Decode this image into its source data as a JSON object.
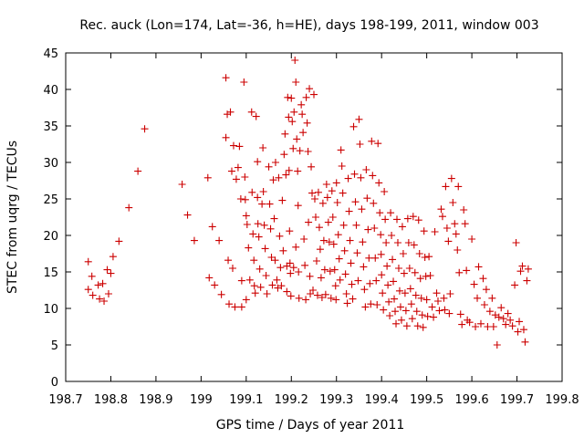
{
  "chart_data": {
    "type": "scatter",
    "title": "Rec. auck (Lon=174, Lat=-36, h=HE), days 198-199, 2011, window 003",
    "xlabel": "GPS time / Days of year 2011",
    "ylabel": "STEC from uqrg / TECUs",
    "xlim": [
      198.7,
      199.8
    ],
    "ylim": [
      0,
      45
    ],
    "xticks": [
      "198.7",
      "198.8",
      "198.9",
      "199",
      "199.1",
      "199.2",
      "199.3",
      "199.4",
      "199.5",
      "199.6",
      "199.7",
      "199.8"
    ],
    "yticks": [
      "0",
      "5",
      "10",
      "15",
      "20",
      "25",
      "30",
      "35",
      "40",
      "45"
    ],
    "grid": false,
    "marker": "+",
    "color": "#cc0000",
    "points": [
      [
        198.75,
        16.4
      ],
      [
        198.75,
        12.6
      ],
      [
        198.758,
        14.4
      ],
      [
        198.76,
        11.8
      ],
      [
        198.772,
        13.2
      ],
      [
        198.775,
        11.3
      ],
      [
        198.782,
        13.4
      ],
      [
        198.785,
        11.0
      ],
      [
        198.792,
        15.3
      ],
      [
        198.795,
        12.0
      ],
      [
        198.8,
        14.8
      ],
      [
        198.805,
        17.1
      ],
      [
        198.818,
        19.2
      ],
      [
        198.84,
        23.8
      ],
      [
        198.86,
        28.8
      ],
      [
        198.875,
        34.6
      ],
      [
        198.958,
        27.0
      ],
      [
        198.97,
        22.8
      ],
      [
        198.985,
        19.3
      ],
      [
        199.015,
        27.9
      ],
      [
        199.018,
        14.2
      ],
      [
        199.025,
        21.2
      ],
      [
        199.03,
        13.2
      ],
      [
        199.04,
        19.3
      ],
      [
        199.045,
        11.9
      ],
      [
        199.055,
        41.6
      ],
      [
        199.055,
        33.4
      ],
      [
        199.058,
        36.6
      ],
      [
        199.06,
        16.6
      ],
      [
        199.062,
        10.6
      ],
      [
        199.065,
        36.9
      ],
      [
        199.068,
        28.8
      ],
      [
        199.07,
        15.5
      ],
      [
        199.072,
        32.3
      ],
      [
        199.075,
        10.2
      ],
      [
        199.078,
        27.7
      ],
      [
        199.082,
        29.3
      ],
      [
        199.085,
        32.2
      ],
      [
        199.088,
        25.0
      ],
      [
        199.09,
        13.8
      ],
      [
        199.09,
        10.2
      ],
      [
        199.095,
        41.0
      ],
      [
        199.097,
        28.0
      ],
      [
        199.098,
        24.9
      ],
      [
        199.1,
        22.7
      ],
      [
        199.1,
        11.2
      ],
      [
        199.102,
        21.5
      ],
      [
        199.105,
        18.3
      ],
      [
        199.108,
        13.9
      ],
      [
        199.112,
        36.9
      ],
      [
        199.113,
        25.9
      ],
      [
        199.115,
        20.2
      ],
      [
        199.117,
        16.6
      ],
      [
        199.118,
        13.1
      ],
      [
        199.12,
        12.1
      ],
      [
        199.122,
        36.3
      ],
      [
        199.125,
        30.1
      ],
      [
        199.125,
        25.2
      ],
      [
        199.126,
        21.6
      ],
      [
        199.128,
        19.8
      ],
      [
        199.13,
        15.4
      ],
      [
        199.132,
        12.9
      ],
      [
        199.135,
        24.3
      ],
      [
        199.137,
        32.0
      ],
      [
        199.138,
        26.0
      ],
      [
        199.14,
        21.4
      ],
      [
        199.142,
        18.2
      ],
      [
        199.144,
        14.5
      ],
      [
        199.146,
        12.0
      ],
      [
        199.15,
        29.4
      ],
      [
        199.152,
        24.3
      ],
      [
        199.154,
        20.9
      ],
      [
        199.156,
        17.0
      ],
      [
        199.158,
        13.2
      ],
      [
        199.16,
        27.6
      ],
      [
        199.162,
        22.3
      ],
      [
        199.164,
        16.6
      ],
      [
        199.165,
        30.0
      ],
      [
        199.168,
        13.9
      ],
      [
        199.17,
        12.8
      ],
      [
        199.172,
        27.9
      ],
      [
        199.174,
        19.9
      ],
      [
        199.176,
        15.6
      ],
      [
        199.178,
        13.1
      ],
      [
        199.18,
        24.8
      ],
      [
        199.182,
        17.9
      ],
      [
        199.184,
        31.1
      ],
      [
        199.186,
        33.9
      ],
      [
        199.188,
        28.3
      ],
      [
        199.19,
        15.8
      ],
      [
        199.19,
        12.3
      ],
      [
        199.192,
        38.9
      ],
      [
        199.194,
        36.2
      ],
      [
        199.195,
        28.9
      ],
      [
        199.196,
        20.6
      ],
      [
        199.197,
        16.2
      ],
      [
        199.198,
        14.8
      ],
      [
        199.199,
        11.7
      ],
      [
        199.2,
        38.8
      ],
      [
        199.202,
        35.6
      ],
      [
        199.204,
        31.9
      ],
      [
        199.205,
        15.6
      ],
      [
        199.206,
        36.9
      ],
      [
        199.208,
        44.0
      ],
      [
        199.21,
        41.0
      ],
      [
        199.21,
        18.4
      ],
      [
        199.212,
        33.2
      ],
      [
        199.214,
        28.8
      ],
      [
        199.215,
        24.1
      ],
      [
        199.216,
        15.0
      ],
      [
        199.217,
        11.4
      ],
      [
        199.219,
        31.6
      ],
      [
        199.222,
        37.9
      ],
      [
        199.224,
        36.6
      ],
      [
        199.226,
        34.1
      ],
      [
        199.228,
        19.5
      ],
      [
        199.23,
        15.9
      ],
      [
        199.232,
        11.2
      ],
      [
        199.233,
        38.9
      ],
      [
        199.235,
        35.4
      ],
      [
        199.237,
        31.5
      ],
      [
        199.238,
        21.8
      ],
      [
        199.24,
        40.1
      ],
      [
        199.241,
        14.4
      ],
      [
        199.242,
        12.0
      ],
      [
        199.244,
        29.4
      ],
      [
        199.246,
        25.8
      ],
      [
        199.248,
        12.5
      ],
      [
        199.25,
        39.3
      ],
      [
        199.252,
        25.0
      ],
      [
        199.254,
        22.5
      ],
      [
        199.256,
        16.5
      ],
      [
        199.258,
        11.8
      ],
      [
        199.26,
        25.9
      ],
      [
        199.262,
        21.1
      ],
      [
        199.264,
        18.1
      ],
      [
        199.266,
        14.2
      ],
      [
        199.268,
        11.5
      ],
      [
        199.27,
        24.4
      ],
      [
        199.272,
        19.3
      ],
      [
        199.274,
        15.3
      ],
      [
        199.276,
        11.9
      ],
      [
        199.278,
        27.0
      ],
      [
        199.28,
        25.2
      ],
      [
        199.282,
        21.8
      ],
      [
        199.284,
        19.1
      ],
      [
        199.286,
        15.1
      ],
      [
        199.288,
        11.4
      ],
      [
        199.29,
        26.1
      ],
      [
        199.292,
        22.5
      ],
      [
        199.294,
        18.8
      ],
      [
        199.296,
        15.3
      ],
      [
        199.298,
        13.1
      ],
      [
        199.299,
        11.2
      ],
      [
        199.3,
        27.2
      ],
      [
        199.302,
        24.5
      ],
      [
        199.304,
        20.1
      ],
      [
        199.306,
        16.8
      ],
      [
        199.308,
        13.9
      ],
      [
        199.31,
        31.7
      ],
      [
        199.312,
        29.5
      ],
      [
        199.314,
        25.8
      ],
      [
        199.316,
        21.4
      ],
      [
        199.318,
        17.9
      ],
      [
        199.32,
        14.7
      ],
      [
        199.322,
        12.0
      ],
      [
        199.324,
        10.7
      ],
      [
        199.326,
        27.8
      ],
      [
        199.328,
        23.3
      ],
      [
        199.33,
        19.3
      ],
      [
        199.332,
        16.2
      ],
      [
        199.334,
        13.3
      ],
      [
        199.336,
        11.3
      ],
      [
        199.338,
        34.9
      ],
      [
        199.34,
        28.4
      ],
      [
        199.342,
        24.6
      ],
      [
        199.344,
        21.4
      ],
      [
        199.346,
        17.6
      ],
      [
        199.348,
        13.8
      ],
      [
        199.35,
        35.9
      ],
      [
        199.352,
        32.5
      ],
      [
        199.354,
        27.9
      ],
      [
        199.356,
        23.6
      ],
      [
        199.358,
        19.1
      ],
      [
        199.36,
        15.7
      ],
      [
        199.362,
        12.6
      ],
      [
        199.364,
        10.2
      ],
      [
        199.366,
        29.0
      ],
      [
        199.368,
        25.1
      ],
      [
        199.37,
        20.8
      ],
      [
        199.372,
        16.9
      ],
      [
        199.374,
        13.4
      ],
      [
        199.376,
        10.6
      ],
      [
        199.378,
        32.9
      ],
      [
        199.38,
        28.2
      ],
      [
        199.382,
        24.4
      ],
      [
        199.384,
        21.0
      ],
      [
        199.386,
        16.9
      ],
      [
        199.388,
        13.8
      ],
      [
        199.39,
        10.5
      ],
      [
        199.392,
        32.6
      ],
      [
        199.394,
        27.2
      ],
      [
        199.396,
        23.1
      ],
      [
        199.398,
        20.1
      ],
      [
        199.399,
        17.4
      ],
      [
        199.4,
        14.6
      ],
      [
        199.402,
        12.1
      ],
      [
        199.404,
        9.8
      ],
      [
        199.406,
        26.0
      ],
      [
        199.408,
        22.2
      ],
      [
        199.41,
        19.0
      ],
      [
        199.412,
        15.8
      ],
      [
        199.414,
        13.2
      ],
      [
        199.416,
        10.9
      ],
      [
        199.418,
        9.0
      ],
      [
        199.42,
        23.1
      ],
      [
        199.422,
        20.0
      ],
      [
        199.424,
        16.7
      ],
      [
        199.426,
        13.7
      ],
      [
        199.428,
        11.3
      ],
      [
        199.43,
        9.6
      ],
      [
        199.432,
        7.9
      ],
      [
        199.434,
        22.2
      ],
      [
        199.436,
        19.0
      ],
      [
        199.438,
        15.5
      ],
      [
        199.44,
        12.4
      ],
      [
        199.442,
        10.2
      ],
      [
        199.444,
        8.4
      ],
      [
        199.446,
        21.2
      ],
      [
        199.448,
        17.5
      ],
      [
        199.45,
        14.8
      ],
      [
        199.452,
        12.1
      ],
      [
        199.454,
        9.7
      ],
      [
        199.456,
        7.6
      ],
      [
        199.458,
        22.3
      ],
      [
        199.46,
        19.0
      ],
      [
        199.462,
        15.5
      ],
      [
        199.464,
        12.7
      ],
      [
        199.466,
        10.6
      ],
      [
        199.468,
        8.6
      ],
      [
        199.47,
        22.6
      ],
      [
        199.472,
        18.7
      ],
      [
        199.474,
        14.9
      ],
      [
        199.476,
        11.8
      ],
      [
        199.478,
        9.6
      ],
      [
        199.48,
        7.6
      ],
      [
        199.482,
        22.1
      ],
      [
        199.484,
        17.5
      ],
      [
        199.486,
        14.1
      ],
      [
        199.488,
        11.4
      ],
      [
        199.49,
        9.1
      ],
      [
        199.492,
        7.4
      ],
      [
        199.494,
        20.6
      ],
      [
        199.496,
        17.0
      ],
      [
        199.498,
        14.4
      ],
      [
        199.5,
        11.2
      ],
      [
        199.502,
        8.9
      ],
      [
        199.505,
        17.1
      ],
      [
        199.508,
        14.5
      ],
      [
        199.512,
        10.2
      ],
      [
        199.515,
        8.8
      ],
      [
        199.518,
        20.5
      ],
      [
        199.522,
        12.1
      ],
      [
        199.525,
        11.0
      ],
      [
        199.528,
        9.7
      ],
      [
        199.532,
        23.6
      ],
      [
        199.535,
        22.6
      ],
      [
        199.538,
        11.4
      ],
      [
        199.54,
        9.8
      ],
      [
        199.542,
        26.7
      ],
      [
        199.545,
        21.0
      ],
      [
        199.548,
        19.2
      ],
      [
        199.55,
        9.3
      ],
      [
        199.552,
        12.0
      ],
      [
        199.555,
        27.8
      ],
      [
        199.558,
        24.5
      ],
      [
        199.562,
        21.6
      ],
      [
        199.565,
        20.2
      ],
      [
        199.568,
        18.0
      ],
      [
        199.57,
        26.7
      ],
      [
        199.572,
        14.9
      ],
      [
        199.575,
        9.2
      ],
      [
        199.578,
        7.8
      ],
      [
        199.582,
        23.5
      ],
      [
        199.585,
        21.6
      ],
      [
        199.588,
        15.2
      ],
      [
        199.59,
        8.4
      ],
      [
        199.595,
        8.1
      ],
      [
        199.6,
        19.5
      ],
      [
        199.605,
        13.3
      ],
      [
        199.608,
        7.5
      ],
      [
        199.612,
        11.4
      ],
      [
        199.615,
        15.7
      ],
      [
        199.62,
        7.9
      ],
      [
        199.625,
        14.1
      ],
      [
        199.628,
        10.5
      ],
      [
        199.632,
        12.6
      ],
      [
        199.635,
        7.5
      ],
      [
        199.64,
        9.6
      ],
      [
        199.645,
        11.4
      ],
      [
        199.648,
        7.5
      ],
      [
        199.652,
        9.1
      ],
      [
        199.656,
        5.0
      ],
      [
        199.66,
        8.8
      ],
      [
        199.665,
        10.1
      ],
      [
        199.67,
        8.6
      ],
      [
        199.675,
        7.8
      ],
      [
        199.68,
        9.3
      ],
      [
        199.685,
        8.4
      ],
      [
        199.69,
        7.6
      ],
      [
        199.695,
        13.2
      ],
      [
        199.698,
        19.0
      ],
      [
        199.702,
        6.8
      ],
      [
        199.705,
        8.2
      ],
      [
        199.708,
        15.1
      ],
      [
        199.712,
        15.8
      ],
      [
        199.715,
        7.1
      ],
      [
        199.718,
        5.4
      ],
      [
        199.722,
        13.8
      ],
      [
        199.725,
        15.4
      ]
    ]
  }
}
